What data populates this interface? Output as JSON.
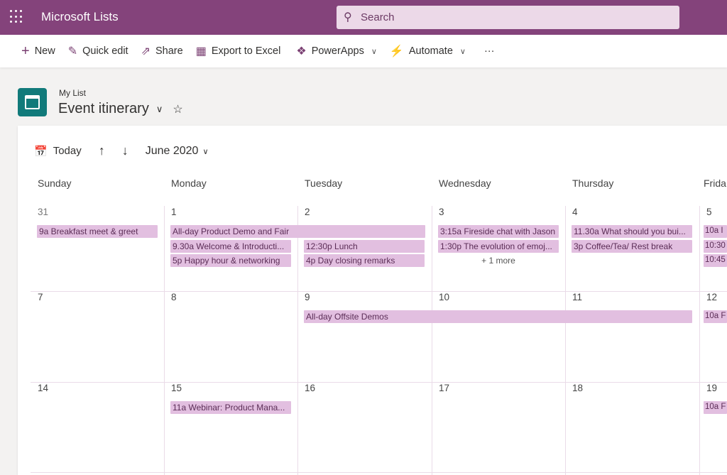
{
  "app": {
    "title": "Microsoft Lists",
    "search_placeholder": "Search",
    "brand_color": "#84437b"
  },
  "toolbar": {
    "new": "New",
    "quick_edit": "Quick edit",
    "share": "Share",
    "export": "Export to Excel",
    "powerapps": "PowerApps",
    "automate": "Automate",
    "more": "···"
  },
  "list": {
    "parent": "My List",
    "title": "Event itinerary"
  },
  "calendar": {
    "today": "Today",
    "month": "June 2020",
    "weekdays": [
      "Sunday",
      "Monday",
      "Tuesday",
      "Wednesday",
      "Thursday",
      "Frida"
    ],
    "weeks": [
      {
        "dates": [
          "31",
          "1",
          "2",
          "3",
          "4",
          "5"
        ],
        "events": [
          {
            "day": 0,
            "span": 1,
            "text": "9a Breakfast meet & greet"
          },
          {
            "day": 1,
            "span": 2,
            "text": "All-day Product Demo and Fair"
          },
          {
            "day": 1,
            "span": 1,
            "text": "9.30a Welcome & Introducti..."
          },
          {
            "day": 1,
            "span": 1,
            "text": "5p Happy hour & networking"
          },
          {
            "day": 2,
            "span": 1,
            "text": "12:30p Lunch"
          },
          {
            "day": 2,
            "span": 1,
            "text": "4p Day closing remarks"
          },
          {
            "day": 3,
            "span": 1,
            "text": "3:15a Fireside chat with Jason"
          },
          {
            "day": 3,
            "span": 1,
            "text": "1:30p The evolution of emoj..."
          },
          {
            "day": 4,
            "span": 1,
            "text": "11.30a What should you bui..."
          },
          {
            "day": 4,
            "span": 1,
            "text": "3p Coffee/Tea/ Rest break"
          },
          {
            "day": 5,
            "span": 1,
            "text": "10a I"
          },
          {
            "day": 5,
            "span": 1,
            "text": "10:30"
          },
          {
            "day": 5,
            "span": 1,
            "text": "10:45"
          }
        ],
        "more": [
          {
            "day": 3,
            "text": "+ 1 more"
          }
        ]
      },
      {
        "dates": [
          "7",
          "8",
          "9",
          "10",
          "11",
          "12"
        ],
        "events": [
          {
            "day": 2,
            "span": 3,
            "text": "All-day Offsite Demos"
          },
          {
            "day": 5,
            "span": 1,
            "text": "10a F"
          }
        ],
        "more": []
      },
      {
        "dates": [
          "14",
          "15",
          "16",
          "17",
          "18",
          "19"
        ],
        "events": [
          {
            "day": 1,
            "span": 1,
            "text": "11a Webinar: Product Mana..."
          },
          {
            "day": 5,
            "span": 1,
            "text": "10a F"
          }
        ],
        "more": []
      }
    ]
  }
}
